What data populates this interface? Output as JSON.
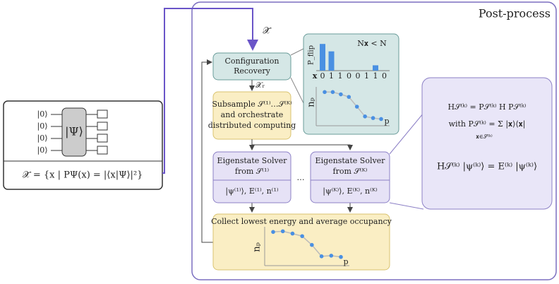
{
  "title": "Post-process",
  "input_box": {
    "qubits": [
      "|0⟩",
      "|0⟩",
      "|0⟩",
      "|0⟩"
    ],
    "state": "|Ψ⟩",
    "formula": "𝒳̃ = {x | PΨ(x) = |⟨x|Ψ⟩|²}"
  },
  "edge_labels": {
    "input": "𝒳̃",
    "recovered": "𝒳ᵣ",
    "ellipsis": "…"
  },
  "nodes": {
    "recovery": [
      "Configuration",
      "Recovery"
    ],
    "subsample": [
      "Subsample 𝒮⁽¹⁾…𝒮⁽ᴷ⁾",
      "and orchestrate",
      "distributed computing"
    ],
    "solver_1": [
      "Eigenstate Solver",
      "from 𝒮⁽¹⁾",
      "|ψ⁽¹⁾⟩, E⁽¹⁾, n⁽¹⁾"
    ],
    "solver_k": [
      "Eigenstate Solver",
      "from 𝒮⁽ᴷ⁾",
      "|ψ⁽ᴷ⁾⟩, E⁽ᴷ⁾, n⁽ᴷ⁾"
    ],
    "collect": "Collect lowest energy and average occupancy"
  },
  "flip_chart": {
    "ylabel": "P_flip",
    "annotation": "N𝐱 < N",
    "xlabel": "𝐱",
    "bits": [
      "0",
      "1",
      "1",
      "0",
      "0",
      "1",
      "1",
      "0"
    ],
    "values": [
      0.9,
      0.65,
      0,
      0,
      0,
      0,
      0.18,
      0
    ],
    "ylim": [
      0,
      1
    ]
  },
  "panel_plot": {
    "ylabel": "nₚ",
    "xlabel": "p",
    "values": [
      0.95,
      0.95,
      0.88,
      0.8,
      0.5,
      0.2,
      0.15,
      0.12
    ],
    "ylim": [
      0,
      1
    ]
  },
  "collect_plot": {
    "ylabel": "nₚ",
    "xlabel": "p",
    "values": [
      0.95,
      0.97,
      0.9,
      0.82,
      0.55,
      0.2,
      0.22,
      0.18
    ],
    "ylim": [
      0,
      1
    ]
  },
  "formulas": [
    "H𝒮⁽ᵏ⁾ = P𝒮⁽ᵏ⁾ H P𝒮⁽ᵏ⁾",
    "with P𝒮⁽ᵏ⁾ = Σ |𝐱⟩⟨𝐱|",
    "𝐱∈𝒮⁽ᵏ⁾",
    "H𝒮⁽ᵏ⁾ |ψ⁽ᵏ⁾⟩ = E⁽ᵏ⁾ |ψ⁽ᵏ⁾⟩"
  ]
}
